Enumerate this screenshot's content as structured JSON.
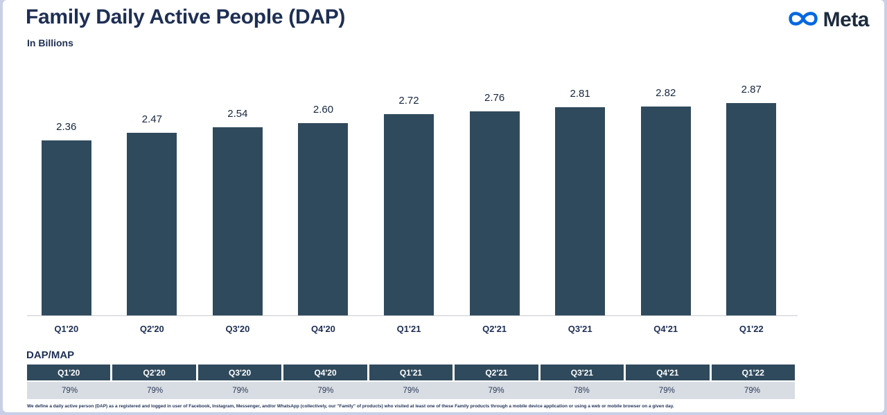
{
  "slide": {
    "title": "Family Daily Active People (DAP)",
    "subtitle": "In Billions",
    "logo_text": "Meta",
    "section_label": "DAP/MAP",
    "footnote": "We define a daily active person (DAP) as a registered and logged in user of Facebook, Instagram, Messenger, and/or WhatsApp (collectively, our \"Family\" of products) who visited at least one of these Family products through a mobile device application or using a web or mobile browser on a given day."
  },
  "colors": {
    "bar": "#304A5D",
    "accent_blue": "#0668E1",
    "title_navy": "#1E2F54",
    "table_header_bg": "#304A5D",
    "table_row_bg": "#D8DCE3"
  },
  "chart_data": {
    "type": "bar",
    "title": "Family Daily Active People (DAP)",
    "subtitle": "In Billions",
    "categories": [
      "Q1'20",
      "Q2'20",
      "Q3'20",
      "Q4'20",
      "Q1'21",
      "Q2'21",
      "Q3'21",
      "Q4'21",
      "Q1'22"
    ],
    "values": [
      2.36,
      2.47,
      2.54,
      2.6,
      2.72,
      2.76,
      2.81,
      2.82,
      2.87
    ],
    "ylim": [
      0,
      3.0
    ],
    "grid": false,
    "legend": false,
    "bar_color": "#304A5D",
    "value_labels_shown": true,
    "dap_map_table": {
      "label": "DAP/MAP",
      "categories": [
        "Q1'20",
        "Q2'20",
        "Q3'20",
        "Q4'20",
        "Q1'21",
        "Q2'21",
        "Q3'21",
        "Q4'21",
        "Q1'22"
      ],
      "percentages": [
        "79%",
        "79%",
        "79%",
        "79%",
        "79%",
        "79%",
        "78%",
        "79%",
        "79%"
      ]
    }
  }
}
